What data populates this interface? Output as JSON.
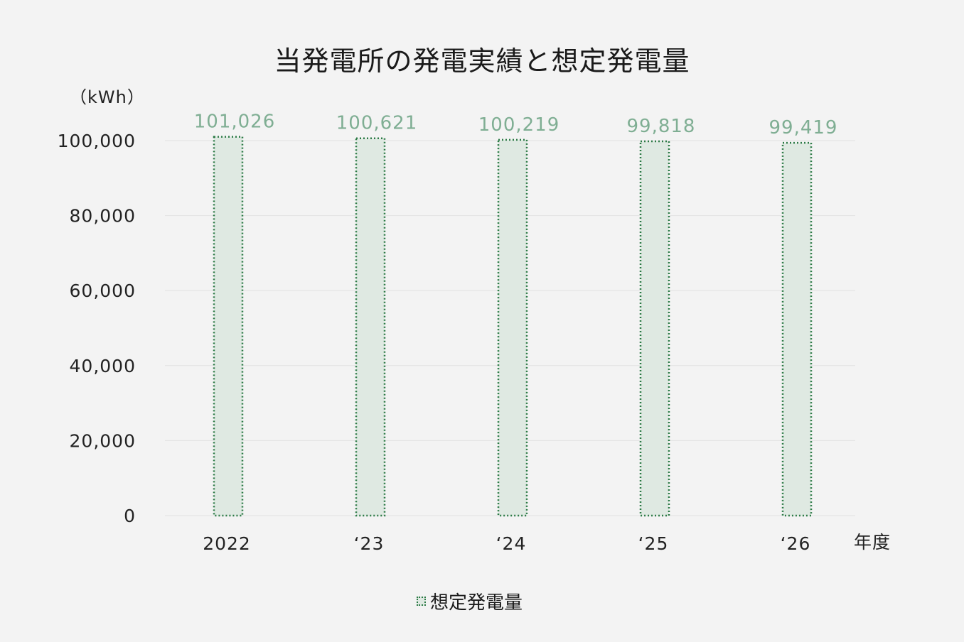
{
  "chart_data": {
    "type": "bar",
    "title": "当発電所の発電実績と想定発電量",
    "unit_label": "（kWh）",
    "xlabel": "年度",
    "categories": [
      "2022",
      "‘23",
      "‘24",
      "‘25",
      "‘26"
    ],
    "series": [
      {
        "name": "想定発電量",
        "values": [
          101026,
          100621,
          100219,
          99818,
          99419
        ],
        "value_labels": [
          "101,026",
          "100,621",
          "100,219",
          "99,818",
          "99,419"
        ],
        "fill": "#dfe9e2",
        "stroke": "#2b7a45",
        "label_color": "#7fae93"
      }
    ],
    "ylim": [
      0,
      100000
    ],
    "yticks": [
      0,
      20000,
      40000,
      60000,
      80000,
      100000
    ],
    "ytick_labels": [
      "0",
      "20,000",
      "40,000",
      "60,000",
      "80,000",
      "100,000"
    ],
    "grid": true,
    "legend_position": "bottom"
  },
  "colors": {
    "background": "#f3f3f3",
    "grid": "#e2e2e2"
  }
}
